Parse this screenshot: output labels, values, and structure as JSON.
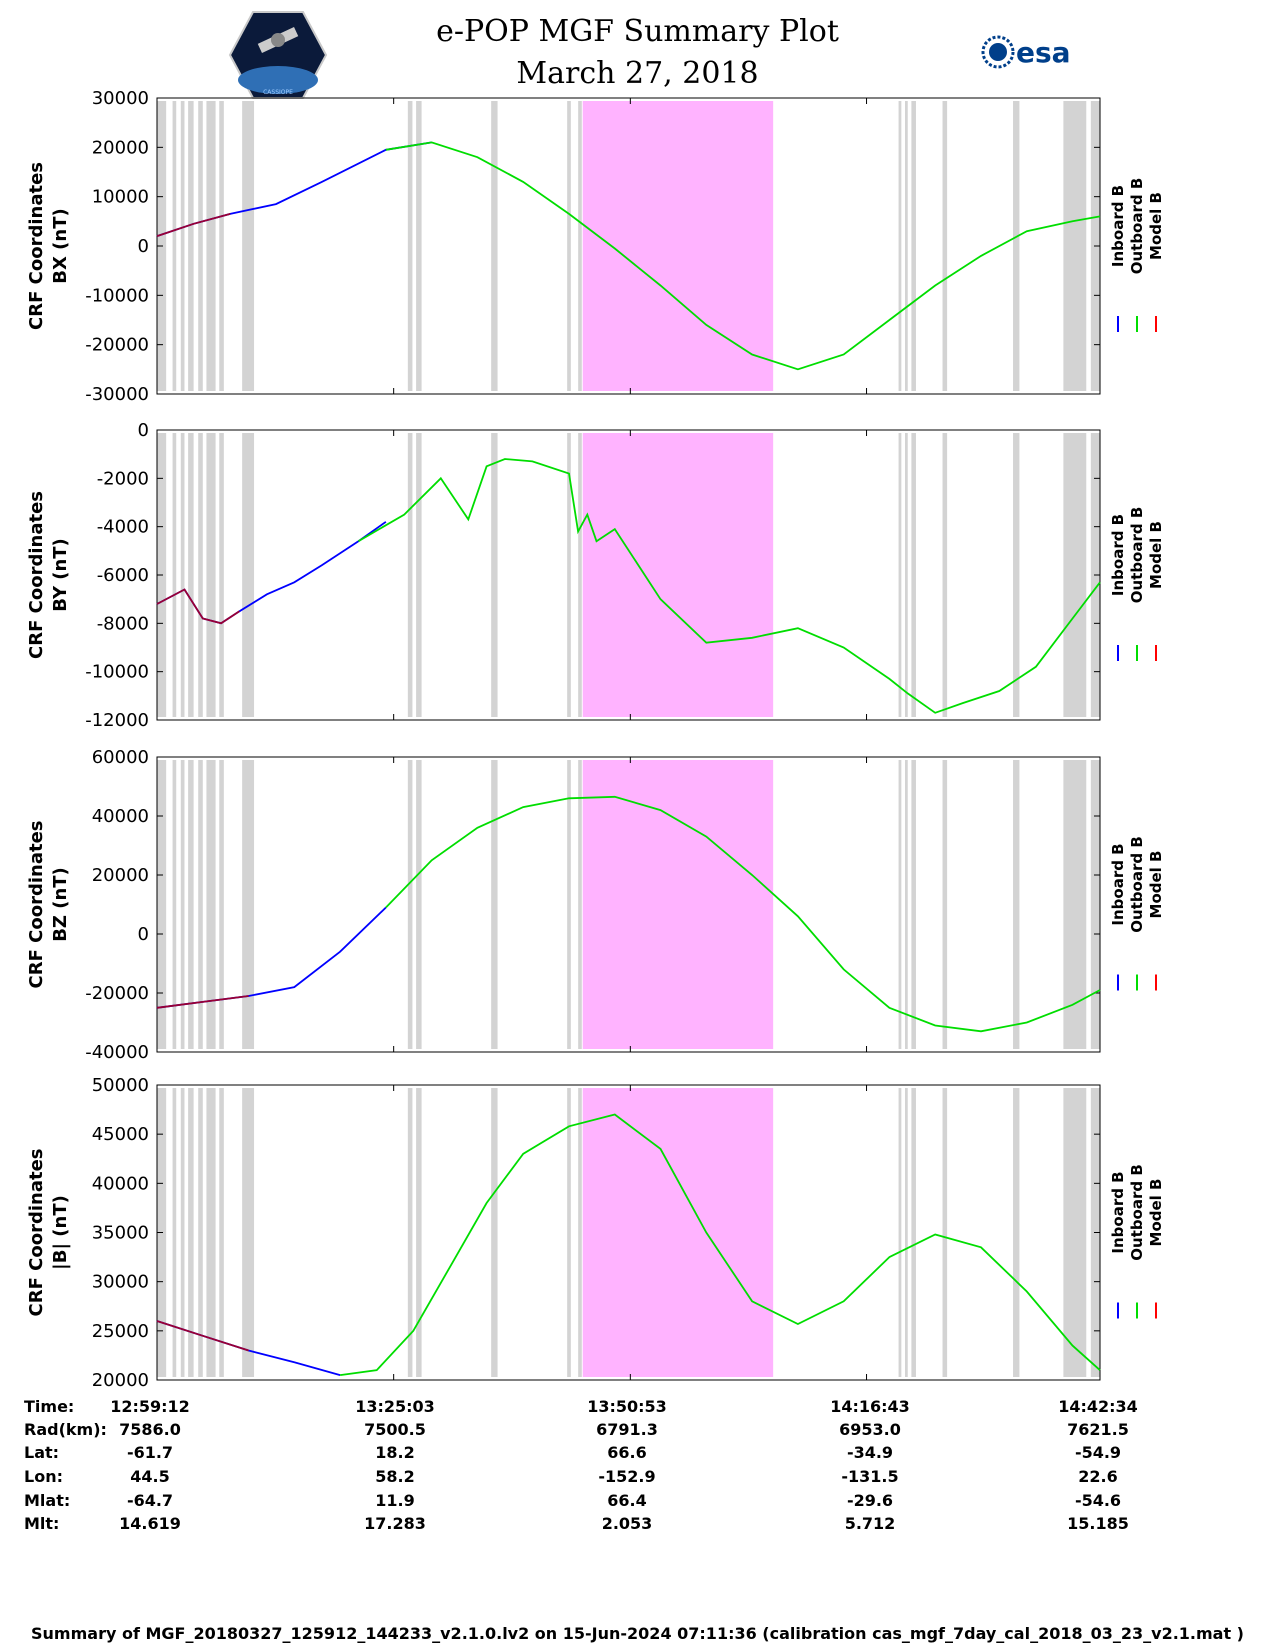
{
  "header": {
    "title_line1": "e-POP MGF Summary Plot",
    "title_line2": "March 27, 2018",
    "left_logo": "cassiope-mission-logo",
    "right_logo_text": "esa"
  },
  "colors": {
    "inboard": "#0000ff",
    "outboard": "#00dd00",
    "model": "#ff0000",
    "inboard_model_overlap": "#990033",
    "gap_bands": "#d3d3d3",
    "highlight": "#ffb3ff"
  },
  "legend": [
    "Inboard B",
    "Outboard B",
    "Model B"
  ],
  "chart_data": [
    {
      "type": "line",
      "ylabel_line1": "CRF Coordinates",
      "ylabel_line2": "BX (nT)",
      "ylim": [
        -30000,
        30000
      ],
      "yticks": [
        "30000",
        "20000",
        "10000",
        "0",
        "-10000",
        "-20000",
        "-30000"
      ],
      "x_minutes": [
        0,
        5,
        10,
        15,
        20,
        25,
        30,
        35,
        40,
        45,
        50,
        55,
        60,
        65,
        70,
        75,
        80,
        85,
        90,
        95,
        100,
        103
      ],
      "series": [
        {
          "name": "Inboard B",
          "x": [
            0,
            4,
            8,
            13,
            18,
            25,
            30
          ],
          "values": [
            2000,
            4500,
            6500,
            8500,
            13000,
            19500,
            21000
          ]
        },
        {
          "name": "Outboard B",
          "x": [
            25,
            30,
            35,
            40,
            45,
            50,
            55,
            60,
            65,
            70,
            75,
            80,
            85,
            90,
            95,
            100,
            103
          ],
          "values": [
            19500,
            21000,
            18000,
            13000,
            6500,
            -500,
            -8000,
            -16000,
            -22000,
            -25000,
            -22000,
            -15000,
            -8000,
            -2000,
            3000,
            5000,
            6000
          ]
        }
      ]
    },
    {
      "type": "line",
      "ylabel_line1": "CRF Coordinates",
      "ylabel_line2": "BY (nT)",
      "ylim": [
        -12000,
        0
      ],
      "yticks": [
        "0",
        "-2000",
        "-4000",
        "-6000",
        "-8000",
        "-10000",
        "-12000"
      ],
      "series": [
        {
          "name": "Inboard B",
          "x": [
            0,
            3,
            5,
            7,
            9,
            12,
            15,
            18,
            22,
            25
          ],
          "values": [
            -7200,
            -6600,
            -7800,
            -8000,
            -7500,
            -6800,
            -6300,
            -5600,
            -4600,
            -3800
          ]
        },
        {
          "name": "Outboard B",
          "x": [
            22,
            27,
            31,
            34,
            36,
            38,
            41,
            45,
            46,
            47,
            48,
            50,
            55,
            60,
            65,
            70,
            75,
            80,
            82,
            85,
            88,
            92,
            96,
            100,
            103
          ],
          "values": [
            -4600,
            -3500,
            -2000,
            -3700,
            -1500,
            -1200,
            -1300,
            -1800,
            -4200,
            -3500,
            -4600,
            -4100,
            -7000,
            -8800,
            -8600,
            -8200,
            -9000,
            -10300,
            -10900,
            -11700,
            -11300,
            -10800,
            -9800,
            -7800,
            -6300
          ]
        }
      ]
    },
    {
      "type": "line",
      "ylabel_line1": "CRF Coordinates",
      "ylabel_line2": "BZ (nT)",
      "ylim": [
        -40000,
        60000
      ],
      "yticks": [
        "60000",
        "40000",
        "20000",
        "0",
        "-20000",
        "-40000"
      ],
      "series": [
        {
          "name": "Inboard B",
          "x": [
            0,
            5,
            10,
            15,
            20,
            25
          ],
          "values": [
            -25000,
            -23000,
            -21000,
            -18000,
            -6000,
            9000
          ]
        },
        {
          "name": "Outboard B",
          "x": [
            25,
            30,
            35,
            40,
            45,
            50,
            55,
            60,
            65,
            70,
            75,
            80,
            85,
            90,
            95,
            100,
            103
          ],
          "values": [
            9000,
            25000,
            36000,
            43000,
            46000,
            46500,
            42000,
            33000,
            20000,
            6000,
            -12000,
            -25000,
            -31000,
            -33000,
            -30000,
            -24000,
            -19000
          ]
        }
      ]
    },
    {
      "type": "line",
      "ylabel_line1": "CRF Coordinates",
      "ylabel_line2": "|B| (nT)",
      "ylim": [
        20000,
        50000
      ],
      "yticks": [
        "50000",
        "45000",
        "40000",
        "35000",
        "30000",
        "25000",
        "20000"
      ],
      "series": [
        {
          "name": "Inboard B",
          "x": [
            0,
            5,
            10,
            15,
            20
          ],
          "values": [
            26000,
            24500,
            23000,
            21800,
            20500
          ]
        },
        {
          "name": "Outboard B",
          "x": [
            20,
            24,
            28,
            32,
            36,
            40,
            45,
            50,
            55,
            60,
            65,
            70,
            75,
            80,
            85,
            90,
            95,
            100,
            103
          ],
          "values": [
            20500,
            21000,
            25000,
            31500,
            38000,
            43000,
            45800,
            47000,
            43500,
            35000,
            28000,
            25700,
            28000,
            32500,
            34800,
            33500,
            29000,
            23500,
            21000
          ]
        }
      ]
    }
  ],
  "info_table": {
    "labels": [
      "Time:",
      "Rad(km):",
      "Lat:",
      "Lon:",
      "Mlat:",
      "Mlt:"
    ],
    "columns": [
      [
        "12:59:12",
        "7586.0",
        "-61.7",
        "44.5",
        "-64.7",
        "14.619"
      ],
      [
        "13:25:03",
        "7500.5",
        "18.2",
        "58.2",
        "11.9",
        "17.283"
      ],
      [
        "13:50:53",
        "6791.3",
        "66.6",
        "-152.9",
        "66.4",
        "2.053"
      ],
      [
        "14:16:43",
        "6953.0",
        "-34.9",
        "-131.5",
        "-29.6",
        "5.712"
      ],
      [
        "14:42:34",
        "7621.5",
        "-54.9",
        "22.6",
        "-54.6",
        "15.185"
      ]
    ]
  },
  "footer": "Summary of MGF_20180327_125912_144233_v2.1.0.lv2 on 15-Jun-2024 07:11:36 (calibration cas_mgf_7day_cal_2018_03_23_v2.1.mat )"
}
